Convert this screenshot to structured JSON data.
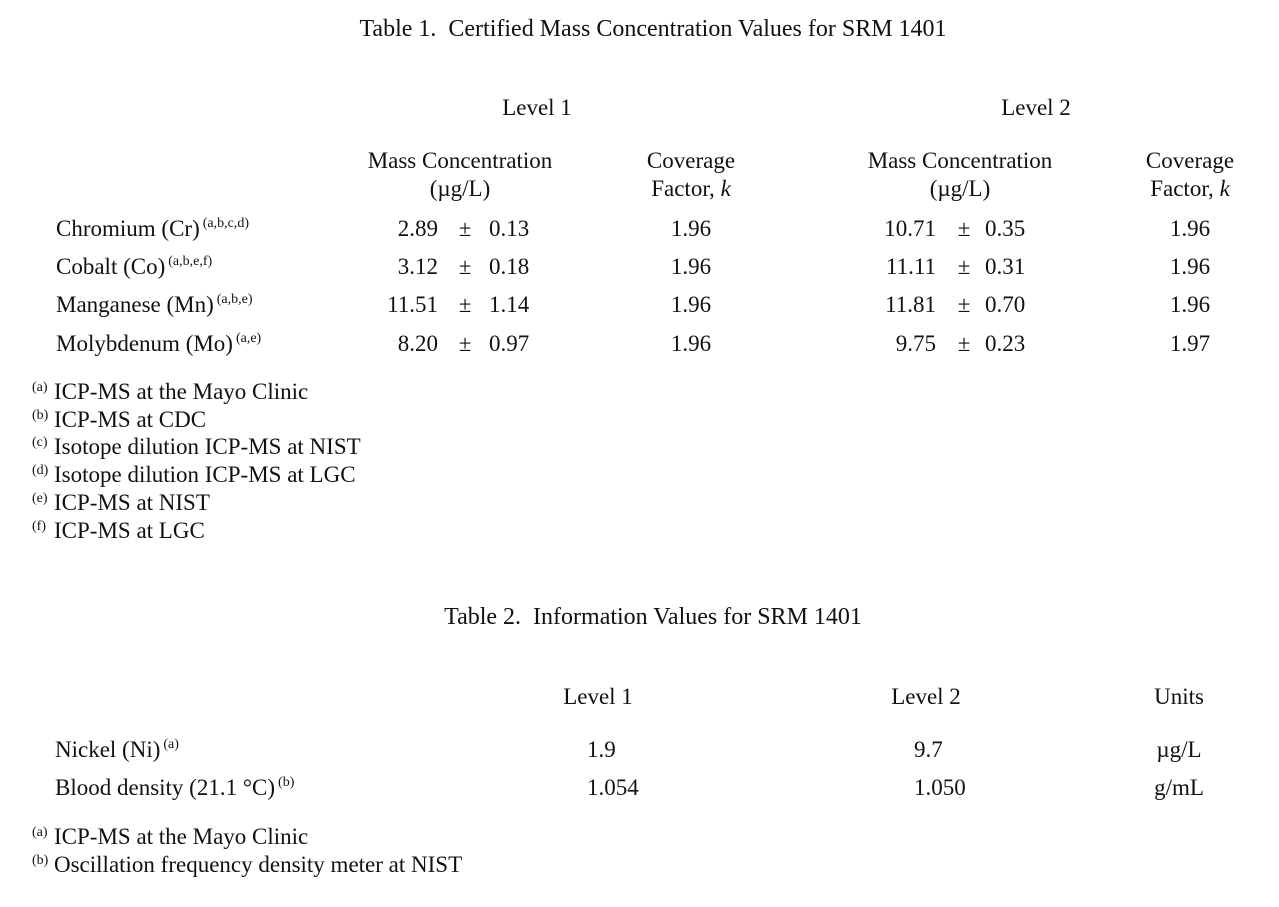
{
  "table1": {
    "title": "Table 1.  Certified Mass Concentration Values for SRM 1401",
    "groups": [
      {
        "label": "Level 1",
        "mass_header": [
          "Mass Concentration",
          "(µg/L)"
        ],
        "coverage_header": [
          "Coverage",
          "Factor,",
          "k"
        ]
      },
      {
        "label": "Level 2",
        "mass_header": [
          "Mass Concentration",
          "(µg/L)"
        ],
        "coverage_header": [
          "Coverage",
          "Factor,",
          "k"
        ]
      }
    ],
    "rows": [
      {
        "label": "Chromium (Cr)",
        "notes": "(a,b,c,d)",
        "cells": [
          [
            "2.89",
            "±",
            "0.13",
            "1.96"
          ],
          [
            "10.71",
            "±",
            "0.35",
            "1.96"
          ]
        ]
      },
      {
        "label": "Cobalt (Co)",
        "notes": "(a,b,e,f)",
        "cells": [
          [
            "3.12",
            "±",
            "0.18",
            "1.96"
          ],
          [
            "11.11",
            "±",
            "0.31",
            "1.96"
          ]
        ]
      },
      {
        "label": "Manganese (Mn)",
        "notes": "(a,b,e)",
        "cells": [
          [
            "11.51",
            "±",
            "1.14",
            "1.96"
          ],
          [
            "11.81",
            "±",
            "0.70",
            "1.96"
          ]
        ]
      },
      {
        "label": "Molybdenum (Mo)",
        "notes": "(a,e)",
        "cells": [
          [
            "8.20",
            "±",
            "0.97",
            "1.96"
          ],
          [
            "9.75",
            "±",
            "0.23",
            "1.97"
          ]
        ]
      }
    ],
    "footnotes": [
      {
        "mark": "(a)",
        "text": "ICP-MS at the Mayo Clinic"
      },
      {
        "mark": "(b)",
        "text": "ICP-MS at CDC"
      },
      {
        "mark": "(c)",
        "text": "Isotope dilution ICP-MS at NIST"
      },
      {
        "mark": "(d)",
        "text": "Isotope dilution ICP-MS at LGC"
      },
      {
        "mark": "(e)",
        "text": "ICP-MS at NIST"
      },
      {
        "mark": "(f)",
        "text": "ICP-MS at LGC"
      }
    ]
  },
  "table2": {
    "title": "Table 2.  Information Values for SRM 1401",
    "headers": [
      "Level 1",
      "Level 2",
      "Units"
    ],
    "rows": [
      {
        "label": "Nickel (Ni)",
        "notes": "(a)",
        "cells": [
          "1.9",
          "9.7",
          "µg/L"
        ]
      },
      {
        "label": "Blood density (21.1 °C)",
        "notes": "(b)",
        "cells": [
          "1.054",
          "1.050",
          "g/mL"
        ]
      }
    ],
    "footnotes": [
      {
        "mark": "(a)",
        "text": "ICP-MS at the Mayo Clinic"
      },
      {
        "mark": "(b)",
        "text": "Oscillation frequency density meter at NIST"
      }
    ]
  }
}
